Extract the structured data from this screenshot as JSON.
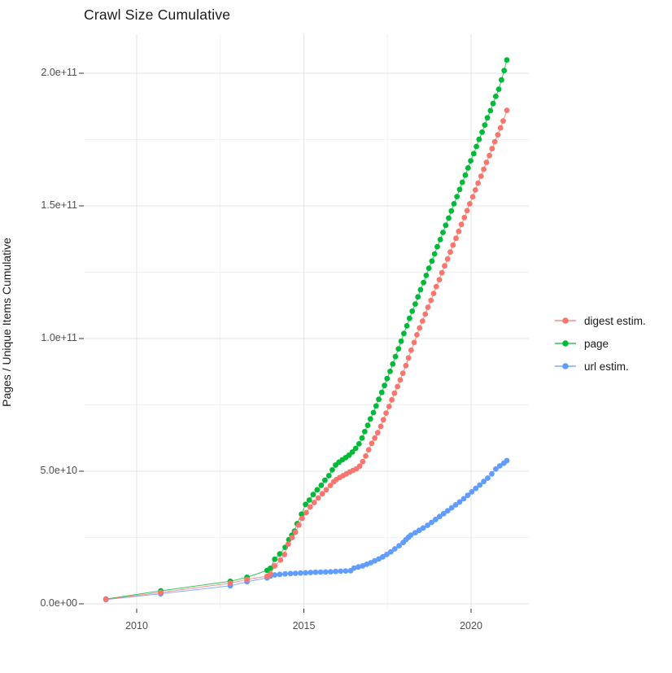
{
  "title": "Crawl Size Cumulative",
  "legend": {
    "items": [
      {
        "id": "digest-estim",
        "label": "digest estim.",
        "color": "#F8766D"
      },
      {
        "id": "page",
        "label": "page",
        "color": "#00BA38"
      },
      {
        "id": "url-estim",
        "label": "url estim.",
        "color": "#619CFF"
      }
    ]
  },
  "colors": {
    "grid_major": "#e3e3e3",
    "grid_minor": "#f2f2f2",
    "tick": "#333333",
    "axis_text": "#4d4d4d",
    "title_text": "#1a1a1a"
  },
  "x_axis": {
    "ticks": [
      {
        "label": "2010",
        "value": 2010
      },
      {
        "label": "2015",
        "value": 2015
      },
      {
        "label": "2020",
        "value": 2020
      }
    ],
    "minor_values": [
      2012.5,
      2017.5
    ]
  },
  "y_axis": {
    "label": "Pages / Unique Items Cumulative",
    "ticks": [
      {
        "label": "0.0e+00",
        "value": 0
      },
      {
        "label": "5.0e+10",
        "value": 50
      },
      {
        "label": "1.0e+11",
        "value": 100
      },
      {
        "label": "1.5e+11",
        "value": 150
      },
      {
        "label": "2.0e+11",
        "value": 200
      }
    ],
    "minor_values": [
      25,
      75,
      125,
      175
    ]
  },
  "chart_data": {
    "type": "scatter",
    "title": "Crawl Size Cumulative",
    "xlabel": "",
    "ylabel": "Pages / Unique Items Cumulative",
    "x_unit": "year (decimal)",
    "y_unit": "items, in billions (1e9)",
    "xlim": [
      2008.6,
      2021.8
    ],
    "ylim": [
      0,
      212
    ],
    "grid": true,
    "legend_position": "right",
    "marker": "point-with-line",
    "series": [
      {
        "name": "page",
        "color": "#00BA38",
        "points": [
          [
            2009.08,
            1.8
          ],
          [
            2010.72,
            4.9
          ],
          [
            2012.8,
            8.5
          ],
          [
            2013.3,
            10.0
          ],
          [
            2013.9,
            12.6
          ],
          [
            2014.0,
            13.4
          ],
          [
            2014.13,
            16.8
          ],
          [
            2014.28,
            18.8
          ],
          [
            2014.44,
            21.3
          ],
          [
            2014.55,
            24.2
          ],
          [
            2014.64,
            25.9
          ],
          [
            2014.72,
            27.4
          ],
          [
            2014.8,
            30.2
          ],
          [
            2014.93,
            33.8
          ],
          [
            2015.05,
            37.5
          ],
          [
            2015.16,
            39.1
          ],
          [
            2015.28,
            41.2
          ],
          [
            2015.4,
            43.0
          ],
          [
            2015.52,
            44.7
          ],
          [
            2015.63,
            46.6
          ],
          [
            2015.75,
            48.3
          ],
          [
            2015.85,
            50.5
          ],
          [
            2015.95,
            52.3
          ],
          [
            2016.05,
            53.4
          ],
          [
            2016.15,
            54.3
          ],
          [
            2016.25,
            55.1
          ],
          [
            2016.35,
            56.0
          ],
          [
            2016.45,
            57.2
          ],
          [
            2016.55,
            58.6
          ],
          [
            2016.65,
            60.3
          ],
          [
            2016.74,
            62.5
          ],
          [
            2016.82,
            64.9
          ],
          [
            2016.91,
            67.3
          ],
          [
            2016.99,
            69.7
          ],
          [
            2017.08,
            72.1
          ],
          [
            2017.16,
            74.6
          ],
          [
            2017.24,
            77.1
          ],
          [
            2017.33,
            79.7
          ],
          [
            2017.41,
            82.3
          ],
          [
            2017.49,
            84.9
          ],
          [
            2017.58,
            87.6
          ],
          [
            2017.66,
            90.4
          ],
          [
            2017.74,
            93.2
          ],
          [
            2017.83,
            96.1
          ],
          [
            2017.91,
            99.0
          ],
          [
            2017.99,
            101.9
          ],
          [
            2018.08,
            104.8
          ],
          [
            2018.16,
            107.6
          ],
          [
            2018.24,
            110.3
          ],
          [
            2018.33,
            113.0
          ],
          [
            2018.41,
            115.7
          ],
          [
            2018.49,
            118.4
          ],
          [
            2018.58,
            121.1
          ],
          [
            2018.66,
            123.8
          ],
          [
            2018.74,
            126.5
          ],
          [
            2018.83,
            129.2
          ],
          [
            2018.91,
            131.9
          ],
          [
            2018.99,
            134.6
          ],
          [
            2019.08,
            137.3
          ],
          [
            2019.16,
            140.0
          ],
          [
            2019.24,
            142.7
          ],
          [
            2019.33,
            145.4
          ],
          [
            2019.41,
            148.1
          ],
          [
            2019.49,
            150.8
          ],
          [
            2019.58,
            153.5
          ],
          [
            2019.66,
            156.2
          ],
          [
            2019.74,
            158.9
          ],
          [
            2019.83,
            161.6
          ],
          [
            2019.91,
            164.3
          ],
          [
            2019.99,
            167.0
          ],
          [
            2020.08,
            169.7
          ],
          [
            2020.16,
            172.4
          ],
          [
            2020.24,
            175.1
          ],
          [
            2020.33,
            177.8
          ],
          [
            2020.41,
            180.5
          ],
          [
            2020.49,
            183.2
          ],
          [
            2020.58,
            185.9
          ],
          [
            2020.66,
            188.6
          ],
          [
            2020.74,
            191.3
          ],
          [
            2020.83,
            194.0
          ],
          [
            2020.91,
            197.5
          ],
          [
            2020.99,
            201.0
          ],
          [
            2021.07,
            205.0
          ]
        ]
      },
      {
        "name": "url estim.",
        "color": "#619CFF",
        "points": [
          [
            2009.08,
            1.6
          ],
          [
            2010.72,
            3.8
          ],
          [
            2012.8,
            6.8
          ],
          [
            2013.3,
            8.3
          ],
          [
            2013.9,
            9.8
          ],
          [
            2014.0,
            10.5
          ],
          [
            2014.13,
            10.9
          ],
          [
            2014.28,
            11.1
          ],
          [
            2014.44,
            11.3
          ],
          [
            2014.6,
            11.4
          ],
          [
            2014.75,
            11.5
          ],
          [
            2014.9,
            11.6
          ],
          [
            2015.05,
            11.7
          ],
          [
            2015.2,
            11.8
          ],
          [
            2015.35,
            11.9
          ],
          [
            2015.5,
            11.95
          ],
          [
            2015.65,
            12.0
          ],
          [
            2015.8,
            12.1
          ],
          [
            2015.95,
            12.2
          ],
          [
            2016.1,
            12.3
          ],
          [
            2016.25,
            12.4
          ],
          [
            2016.4,
            12.5
          ],
          [
            2016.5,
            13.5
          ],
          [
            2016.63,
            13.9
          ],
          [
            2016.76,
            14.3
          ],
          [
            2016.88,
            14.9
          ],
          [
            2017.0,
            15.5
          ],
          [
            2017.12,
            16.2
          ],
          [
            2017.24,
            16.9
          ],
          [
            2017.36,
            17.7
          ],
          [
            2017.48,
            18.6
          ],
          [
            2017.6,
            19.6
          ],
          [
            2017.72,
            20.7
          ],
          [
            2017.85,
            21.9
          ],
          [
            2017.97,
            23.1
          ],
          [
            2018.05,
            24.2
          ],
          [
            2018.13,
            25.1
          ],
          [
            2018.2,
            25.9
          ],
          [
            2018.33,
            26.8
          ],
          [
            2018.45,
            27.7
          ],
          [
            2018.57,
            28.6
          ],
          [
            2018.7,
            29.6
          ],
          [
            2018.82,
            30.7
          ],
          [
            2018.94,
            31.8
          ],
          [
            2019.06,
            32.9
          ],
          [
            2019.18,
            34.0
          ],
          [
            2019.3,
            35.1
          ],
          [
            2019.42,
            36.2
          ],
          [
            2019.54,
            37.3
          ],
          [
            2019.66,
            38.4
          ],
          [
            2019.78,
            39.6
          ],
          [
            2019.9,
            40.9
          ],
          [
            2020.02,
            42.2
          ],
          [
            2020.14,
            43.5
          ],
          [
            2020.26,
            44.8
          ],
          [
            2020.38,
            46.1
          ],
          [
            2020.5,
            47.4
          ],
          [
            2020.62,
            49.0
          ],
          [
            2020.74,
            50.8
          ],
          [
            2020.86,
            52.0
          ],
          [
            2020.98,
            53.0
          ],
          [
            2021.07,
            54.0
          ]
        ]
      },
      {
        "name": "digest estim.",
        "color": "#F8766D",
        "points": [
          [
            2009.08,
            1.7
          ],
          [
            2010.72,
            4.3
          ],
          [
            2012.8,
            7.8
          ],
          [
            2013.3,
            9.2
          ],
          [
            2013.9,
            10.4
          ],
          [
            2014.0,
            11.2
          ],
          [
            2014.13,
            14.3
          ],
          [
            2014.3,
            16.5
          ],
          [
            2014.42,
            18.6
          ],
          [
            2014.53,
            22.5
          ],
          [
            2014.65,
            25.0
          ],
          [
            2014.75,
            27.0
          ],
          [
            2014.85,
            29.7
          ],
          [
            2014.95,
            32.2
          ],
          [
            2015.07,
            34.4
          ],
          [
            2015.19,
            36.5
          ],
          [
            2015.31,
            38.2
          ],
          [
            2015.43,
            39.9
          ],
          [
            2015.55,
            41.5
          ],
          [
            2015.67,
            43.0
          ],
          [
            2015.79,
            44.6
          ],
          [
            2015.89,
            46.0
          ],
          [
            2015.97,
            46.8
          ],
          [
            2016.07,
            47.6
          ],
          [
            2016.17,
            48.3
          ],
          [
            2016.27,
            49.0
          ],
          [
            2016.37,
            49.7
          ],
          [
            2016.47,
            50.3
          ],
          [
            2016.57,
            50.9
          ],
          [
            2016.67,
            51.9
          ],
          [
            2016.76,
            53.6
          ],
          [
            2016.85,
            55.7
          ],
          [
            2016.94,
            58.1
          ],
          [
            2017.03,
            60.5
          ],
          [
            2017.12,
            62.5
          ],
          [
            2017.21,
            64.5
          ],
          [
            2017.3,
            66.9
          ],
          [
            2017.38,
            69.4
          ],
          [
            2017.46,
            71.9
          ],
          [
            2017.55,
            74.4
          ],
          [
            2017.63,
            76.9
          ],
          [
            2017.71,
            79.4
          ],
          [
            2017.8,
            81.9
          ],
          [
            2017.88,
            84.4
          ],
          [
            2017.96,
            86.9
          ],
          [
            2018.05,
            89.8
          ],
          [
            2018.13,
            92.7
          ],
          [
            2018.21,
            95.6
          ],
          [
            2018.3,
            98.5
          ],
          [
            2018.38,
            101.4
          ],
          [
            2018.46,
            104.0
          ],
          [
            2018.55,
            106.6
          ],
          [
            2018.63,
            109.2
          ],
          [
            2018.71,
            111.8
          ],
          [
            2018.8,
            114.4
          ],
          [
            2018.88,
            117.0
          ],
          [
            2018.96,
            119.6
          ],
          [
            2019.05,
            122.2
          ],
          [
            2019.13,
            124.8
          ],
          [
            2019.21,
            127.4
          ],
          [
            2019.3,
            130.0
          ],
          [
            2019.38,
            132.6
          ],
          [
            2019.46,
            135.2
          ],
          [
            2019.55,
            137.8
          ],
          [
            2019.63,
            140.4
          ],
          [
            2019.71,
            143.0
          ],
          [
            2019.8,
            145.6
          ],
          [
            2019.88,
            148.2
          ],
          [
            2019.96,
            150.8
          ],
          [
            2020.05,
            153.4
          ],
          [
            2020.13,
            156.0
          ],
          [
            2020.21,
            158.6
          ],
          [
            2020.3,
            161.2
          ],
          [
            2020.38,
            163.8
          ],
          [
            2020.46,
            166.4
          ],
          [
            2020.55,
            169.0
          ],
          [
            2020.63,
            171.6
          ],
          [
            2020.71,
            174.2
          ],
          [
            2020.8,
            176.8
          ],
          [
            2020.88,
            179.4
          ],
          [
            2020.96,
            182.0
          ],
          [
            2021.07,
            186.0
          ]
        ]
      }
    ]
  }
}
